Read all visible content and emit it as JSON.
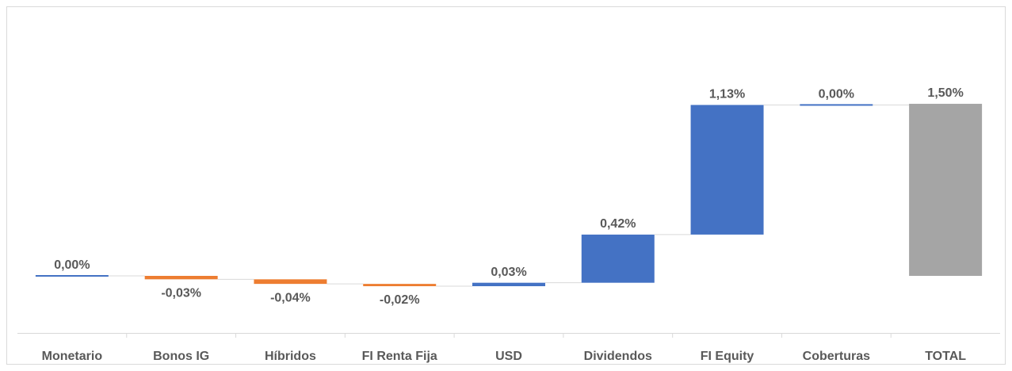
{
  "chart_data": {
    "type": "waterfall",
    "categories": [
      "Monetario",
      "Bonos IG",
      "Híbridos",
      "FI Renta Fija",
      "USD",
      "Dividendos",
      "FI Equity",
      "Coberturas",
      "TOTAL"
    ],
    "values": [
      0.0,
      -0.03,
      -0.04,
      -0.02,
      0.03,
      0.42,
      1.13,
      0.0,
      1.5
    ],
    "value_labels": [
      "0,00%",
      "-0,03%",
      "-0,04%",
      "-0,02%",
      "0,03%",
      "0,42%",
      "1,13%",
      "0,00%",
      "1,50%"
    ],
    "increase_color": "#4472c4",
    "decrease_color": "#ed7d31",
    "total_color": "#a5a5a5"
  }
}
